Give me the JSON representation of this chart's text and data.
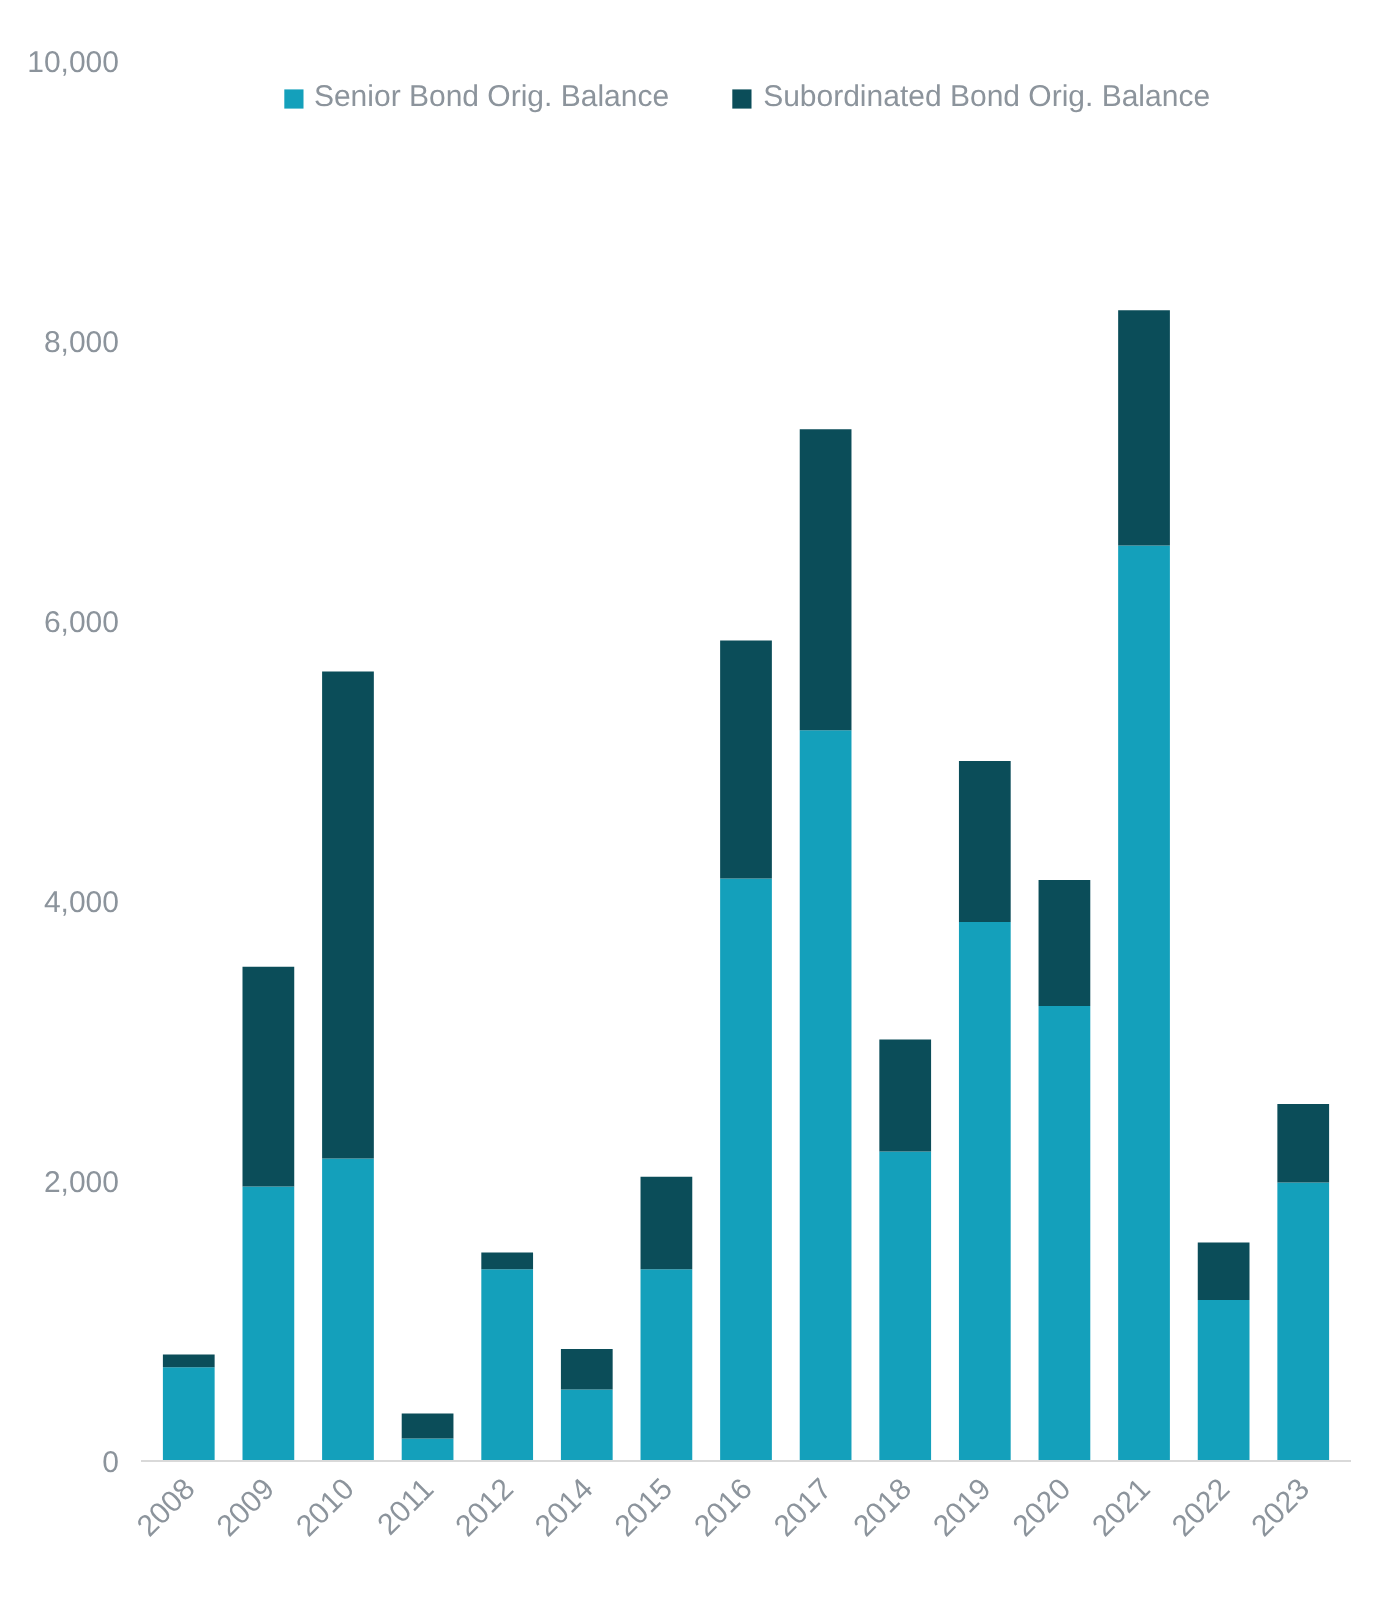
{
  "chart_data": {
    "type": "bar",
    "stacked": true,
    "categories": [
      "2008",
      "2009",
      "2010",
      "2011",
      "2012",
      "2014",
      "2015",
      "2016",
      "2017",
      "2018",
      "2019",
      "2020",
      "2021",
      "2022",
      "2023"
    ],
    "series": [
      {
        "name": "Senior Bond Orig. Balance",
        "color": "#14a0bb",
        "values": [
          670,
          1960,
          2160,
          160,
          1370,
          510,
          1370,
          4160,
          5220,
          2210,
          3850,
          3250,
          6540,
          1150,
          1990
        ]
      },
      {
        "name": "Subordinated Bond Orig. Balance",
        "color": "#0b4d59",
        "values": [
          90,
          1570,
          3480,
          180,
          120,
          290,
          660,
          1700,
          2150,
          800,
          1150,
          900,
          1680,
          410,
          560
        ]
      }
    ],
    "ylim": [
      0,
      10000
    ],
    "yticks": [
      {
        "value": 0,
        "label": "0"
      },
      {
        "value": 2000,
        "label": "2,000"
      },
      {
        "value": 4000,
        "label": "4,000"
      },
      {
        "value": 6000,
        "label": "6,000"
      },
      {
        "value": 8000,
        "label": "8,000"
      },
      {
        "value": 10000,
        "label": "10,000"
      }
    ],
    "grid": false,
    "legend": "top"
  }
}
